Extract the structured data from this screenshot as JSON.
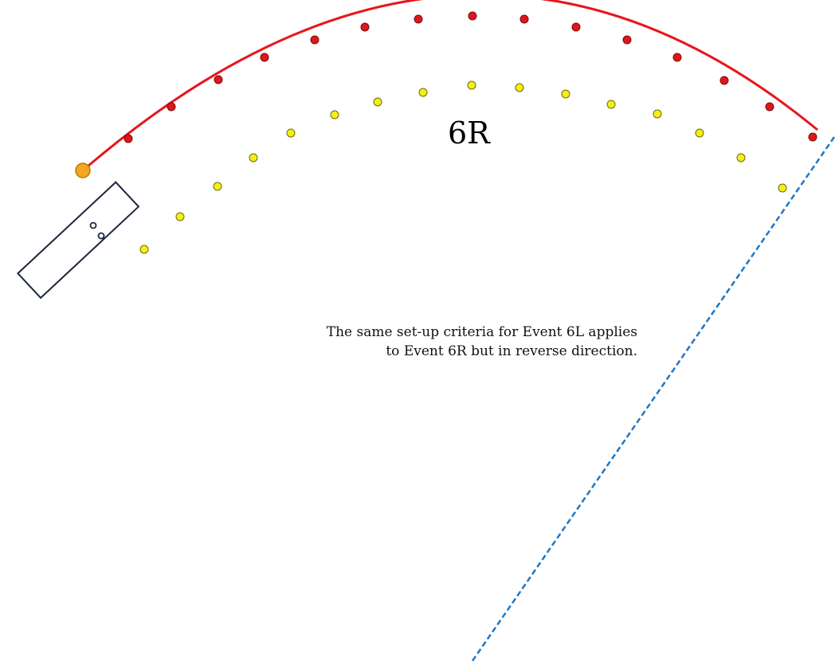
{
  "event_label": "6R",
  "note": {
    "line1": "The same set-up criteria for Event 6L applies",
    "line2": "to Event 6R but in reverse direction."
  },
  "colors": {
    "course_line": "#e8161b",
    "red_marker": "#e0161b",
    "yellow_marker": "#f5f010",
    "start_marker": "#f5a623",
    "boundary_line": "#1f77c4",
    "trailer_outline": "#1c2640"
  },
  "counts": {
    "red_markers": 16,
    "yellow_markers": 16
  }
}
